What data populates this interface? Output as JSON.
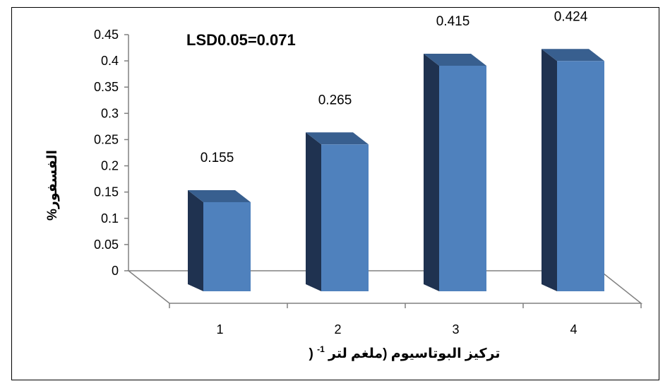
{
  "chart_data": {
    "type": "bar",
    "categories": [
      "1",
      "2",
      "3",
      "4"
    ],
    "values": [
      0.155,
      0.265,
      0.415,
      0.424
    ],
    "data_labels": [
      "0.155",
      "0.265",
      "0.415",
      "0.424"
    ],
    "ylabel": "الفسفور%",
    "xlabel": "تركيز البوتاسيوم (ملغم لتر-1)",
    "xlabel_main": "تركيز البوتاسيوم (ملغم لتر",
    "xlabel_sup": "-1",
    "xlabel_close": ")",
    "annotation": "LSD0.05=0.071",
    "ylim": [
      0,
      0.45
    ],
    "yticks": [
      "0",
      "0.05",
      "0.1",
      "0.15",
      "0.2",
      "0.25",
      "0.3",
      "0.35",
      "0.4",
      "0.45"
    ],
    "bar_style": "3d-column",
    "grid": false,
    "legend": "none"
  },
  "colors": {
    "bar_front": "#4f81bd",
    "bar_side": "#1f3250",
    "bar_top": "#385f8f",
    "axis": "#808080"
  }
}
